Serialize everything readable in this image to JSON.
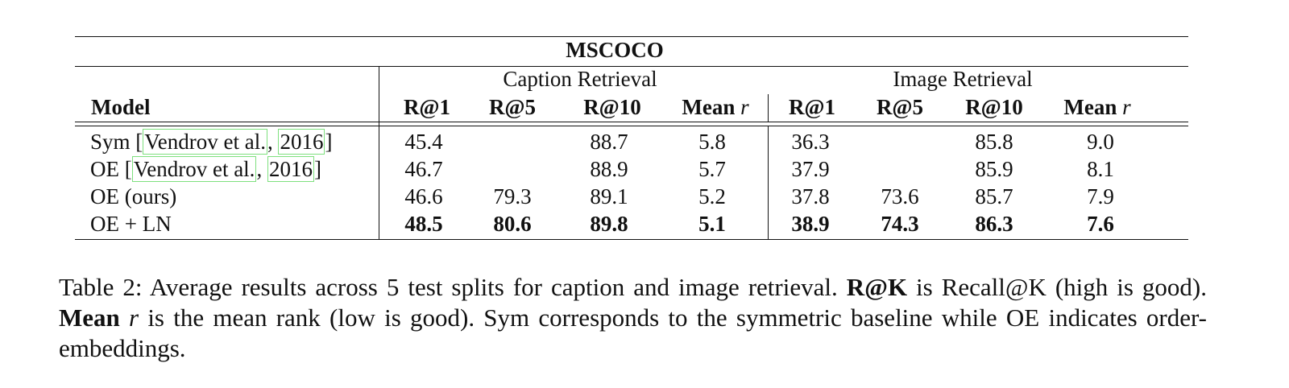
{
  "table": {
    "title": "MSCOCO",
    "groups": {
      "caption": "Caption Retrieval",
      "image": "Image Retrieval"
    },
    "headers": {
      "model": "Model",
      "r1": "R@1",
      "r5": "R@5",
      "r10": "R@10",
      "mean": "Mean ",
      "mean_r": "r"
    },
    "rows": [
      {
        "model_prefix": "Sym [",
        "cite_a": "Vendrov et al.",
        "cite_sep": ", ",
        "cite_b": "2016",
        "model_suffix": "]",
        "c_r1": "45.4",
        "c_r5": "",
        "c_r10": "88.7",
        "c_mean": "5.8",
        "i_r1": "36.3",
        "i_r5": "",
        "i_r10": "85.8",
        "i_mean": "9.0"
      },
      {
        "model_prefix": "OE [",
        "cite_a": "Vendrov et al.",
        "cite_sep": ", ",
        "cite_b": "2016",
        "model_suffix": "]",
        "c_r1": "46.7",
        "c_r5": "",
        "c_r10": "88.9",
        "c_mean": "5.7",
        "i_r1": "37.9",
        "i_r5": "",
        "i_r10": "85.9",
        "i_mean": "8.1"
      },
      {
        "model": "OE (ours)",
        "c_r1": "46.6",
        "c_r5": "79.3",
        "c_r10": "89.1",
        "c_mean": "5.2",
        "i_r1": "37.8",
        "i_r5": "73.6",
        "i_r10": "85.7",
        "i_mean": "7.9"
      },
      {
        "model": "OE + LN",
        "c_r1": "48.5",
        "c_r5": "80.6",
        "c_r10": "89.8",
        "c_mean": "5.1",
        "i_r1": "38.9",
        "i_r5": "74.3",
        "i_r10": "86.3",
        "i_mean": "7.6"
      }
    ]
  },
  "caption": {
    "part1": "Table 2:  Average results across 5 test splits for caption and image retrieval. ",
    "bold1": "R@K",
    "part2": " is Recall@K (high is good). ",
    "bold2": "Mean ",
    "bold2_r": "r",
    "part3": " is the mean rank (low is good). Sym corresponds to the symmetric baseline while OE indicates order-embeddings."
  }
}
